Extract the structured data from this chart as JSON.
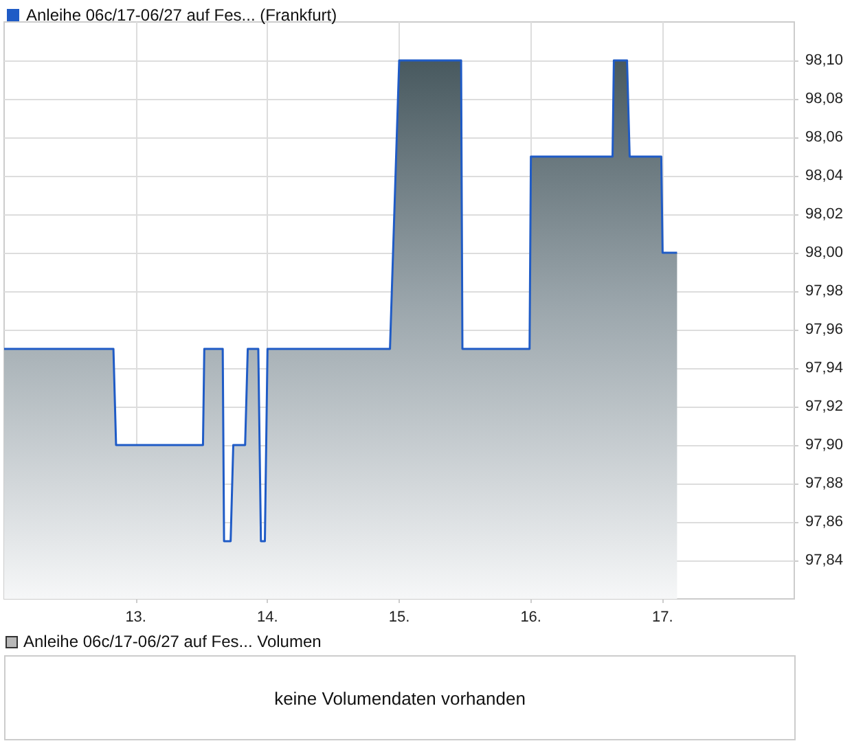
{
  "chart_data": [
    {
      "type": "area",
      "legend": "top left",
      "grid": true,
      "marker": "none",
      "line_style": "solid",
      "xlim": [
        12.0,
        18.0
      ],
      "xticks": [
        {
          "value": 13,
          "label": "13."
        },
        {
          "value": 14,
          "label": "14."
        },
        {
          "value": 15,
          "label": "15."
        },
        {
          "value": 16,
          "label": "16."
        },
        {
          "value": 17,
          "label": "17."
        }
      ],
      "ylim": [
        97.82,
        98.12
      ],
      "yticks": [
        {
          "value": 97.84,
          "label": "97,84"
        },
        {
          "value": 97.86,
          "label": "97,86"
        },
        {
          "value": 97.88,
          "label": "97,88"
        },
        {
          "value": 97.9,
          "label": "97,90"
        },
        {
          "value": 97.92,
          "label": "97,92"
        },
        {
          "value": 97.94,
          "label": "97,94"
        },
        {
          "value": 97.96,
          "label": "97,96"
        },
        {
          "value": 97.98,
          "label": "97,98"
        },
        {
          "value": 98.0,
          "label": "98,00"
        },
        {
          "value": 98.02,
          "label": "98,02"
        },
        {
          "value": 98.04,
          "label": "98,04"
        },
        {
          "value": 98.06,
          "label": "98,06"
        },
        {
          "value": 98.08,
          "label": "98,08"
        },
        {
          "value": 98.1,
          "label": "98,10"
        }
      ],
      "series": [
        {
          "name": "Anleihe 06c/17-06/27 auf Fes... (Frankfurt)",
          "color": "#1f5bc6",
          "x": [
            12.0,
            12.83,
            12.85,
            13.51,
            13.52,
            13.66,
            13.67,
            13.72,
            13.74,
            13.83,
            13.85,
            13.93,
            13.95,
            13.98,
            14.0,
            14.93,
            15.0,
            15.47,
            15.48,
            15.99,
            16.0,
            16.62,
            16.63,
            16.73,
            16.75,
            16.99,
            17.0,
            17.11
          ],
          "values": [
            97.95,
            97.95,
            97.9,
            97.9,
            97.95,
            97.95,
            97.85,
            97.85,
            97.9,
            97.9,
            97.95,
            97.95,
            97.85,
            97.85,
            97.95,
            97.95,
            98.1,
            98.1,
            97.95,
            97.95,
            98.05,
            98.05,
            98.1,
            98.1,
            98.05,
            98.05,
            98.0,
            98.0
          ]
        }
      ]
    },
    {
      "type": "other",
      "title": "Anleihe 06c/17-06/27 auf Fes... Volumen",
      "annotations": [
        "keine Volumendaten vorhanden"
      ]
    }
  ]
}
